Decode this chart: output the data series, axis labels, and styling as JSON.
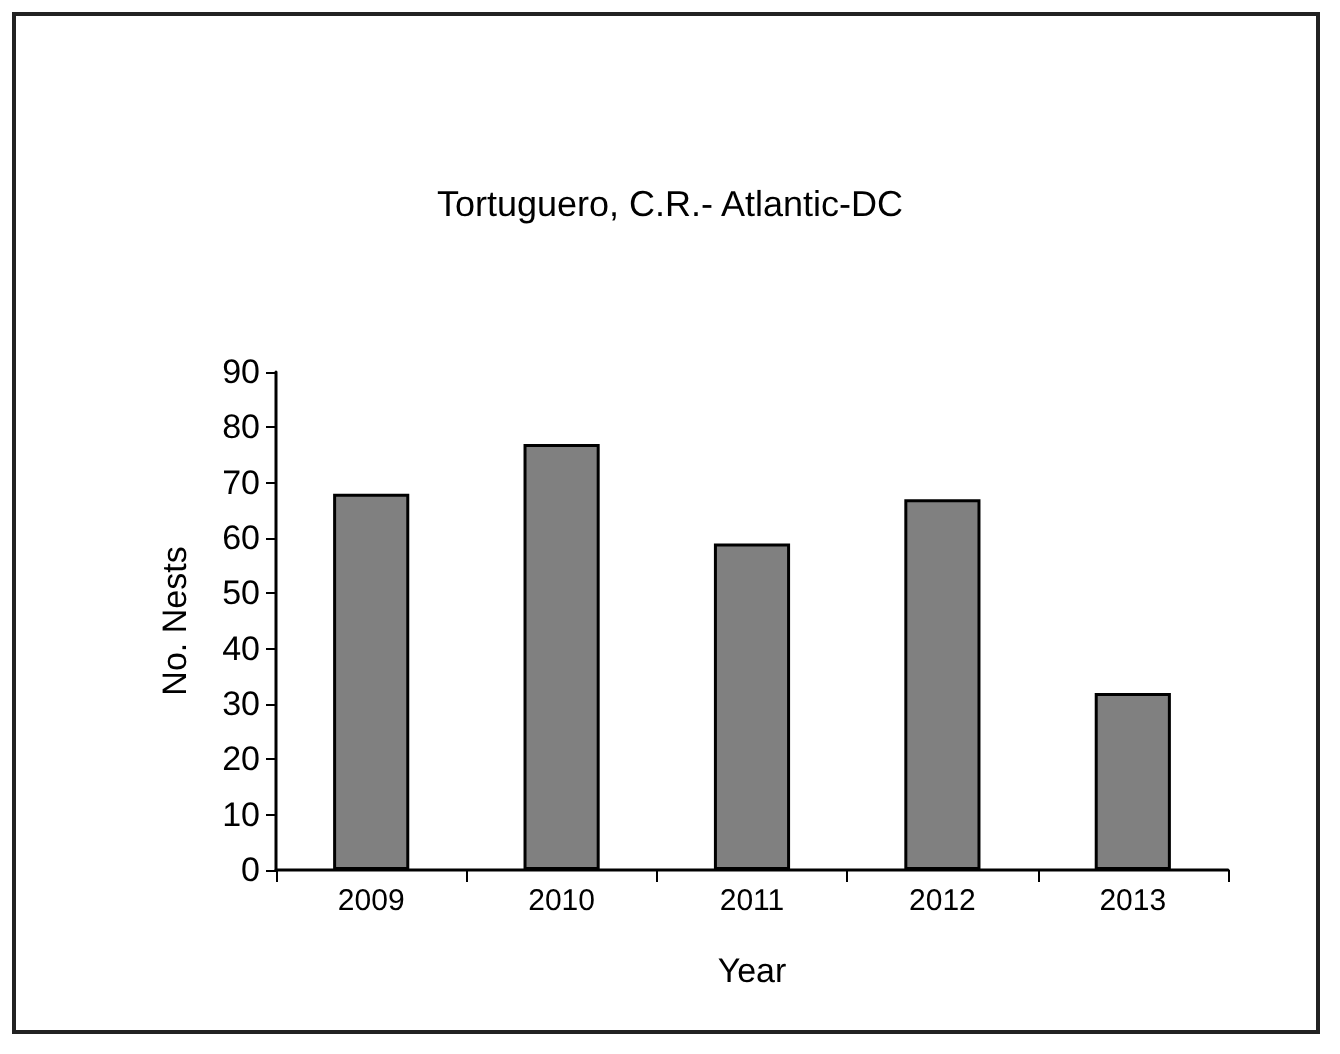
{
  "chart_data": {
    "type": "bar",
    "title": "Tortuguero, C.R.- Atlantic-DC",
    "xlabel": "Year",
    "ylabel": "No. Nests",
    "categories": [
      "2009",
      "2010",
      "2011",
      "2012",
      "2013"
    ],
    "values": [
      68,
      77,
      59,
      67,
      32
    ],
    "color": "#808080",
    "ylim": [
      0,
      90
    ],
    "yticks": [
      0,
      10,
      20,
      30,
      40,
      50,
      60,
      70,
      80,
      90
    ],
    "grid": false
  }
}
